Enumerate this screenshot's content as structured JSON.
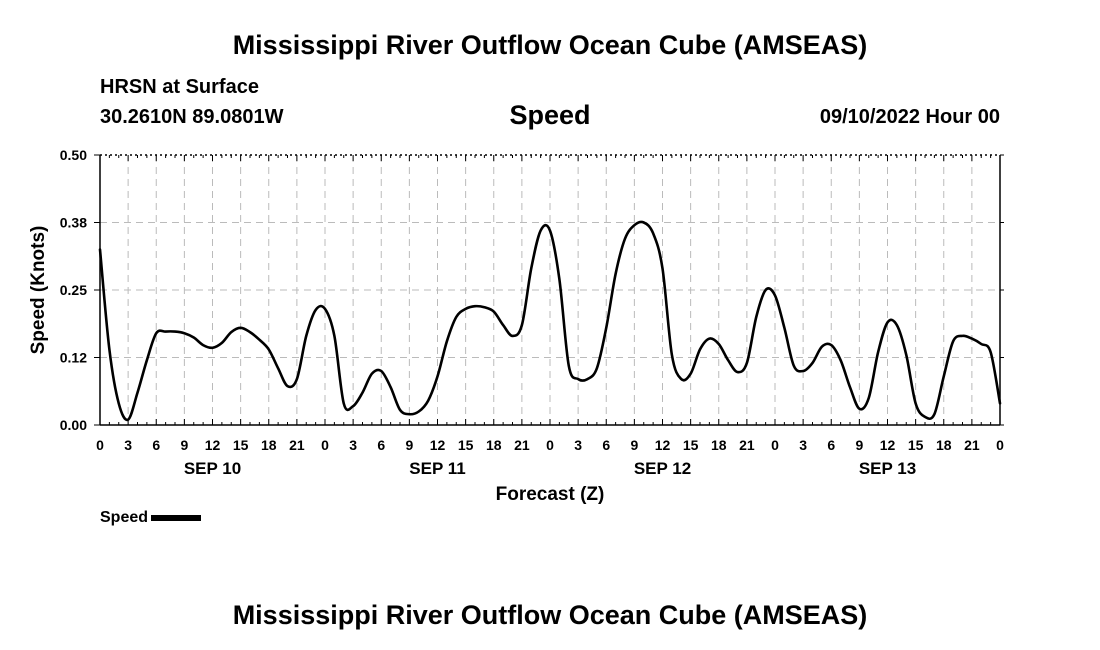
{
  "page_title": "Mississippi River Outflow Ocean Cube (AMSEAS)",
  "footer_title": "Mississippi River Outflow Ocean Cube (AMSEAS)",
  "location": {
    "station": "HRSN at Surface",
    "coords": "30.2610N  89.0801W"
  },
  "variable": "Speed",
  "issued": "09/10/2022 Hour 00",
  "legend": {
    "label": "Speed"
  },
  "chart_data": {
    "type": "line",
    "title": "Speed",
    "xlabel": "Forecast (Z)",
    "ylabel": "Speed (Knots)",
    "x_unit": "hours since 09/10/2022 00Z",
    "xlim": [
      0,
      96
    ],
    "ylim": [
      0,
      0.5
    ],
    "yticks": [
      0,
      0.125,
      0.25,
      0.375,
      0.5
    ],
    "ytick_labels": [
      "0.00",
      "0.12",
      "0.25",
      "0.38",
      "0.50"
    ],
    "xticks": [
      0,
      3,
      6,
      9,
      12,
      15,
      18,
      21,
      24,
      27,
      30,
      33,
      36,
      39,
      42,
      45,
      48,
      51,
      54,
      57,
      60,
      63,
      66,
      69,
      72,
      75,
      78,
      81,
      84,
      87,
      90,
      93,
      96
    ],
    "xtick_labels": [
      "0",
      "3",
      "6",
      "9",
      "12",
      "15",
      "18",
      "21",
      "0",
      "3",
      "6",
      "9",
      "12",
      "15",
      "18",
      "21",
      "0",
      "3",
      "6",
      "9",
      "12",
      "15",
      "18",
      "21",
      "0",
      "3",
      "6",
      "9",
      "12",
      "15",
      "18",
      "21",
      "0"
    ],
    "day_labels": [
      {
        "label": "SEP 10",
        "hour": 12
      },
      {
        "label": "SEP 11",
        "hour": 36
      },
      {
        "label": "SEP 12",
        "hour": 60
      },
      {
        "label": "SEP 13",
        "hour": 84
      }
    ],
    "grid": true,
    "legend_position": "bottom-left",
    "series": [
      {
        "name": "Speed",
        "x": [
          0,
          1,
          2,
          3,
          4,
          5,
          6,
          7,
          8,
          9,
          10,
          11,
          12,
          13,
          14,
          15,
          16,
          17,
          18,
          19,
          20,
          21,
          22,
          23,
          24,
          25,
          26,
          27,
          28,
          29,
          30,
          31,
          32,
          33,
          34,
          35,
          36,
          37,
          38,
          39,
          40,
          41,
          42,
          43,
          44,
          45,
          46,
          47,
          48,
          49,
          50,
          51,
          52,
          53,
          54,
          55,
          56,
          57,
          58,
          59,
          60,
          61,
          62,
          63,
          64,
          65,
          66,
          67,
          68,
          69,
          70,
          71,
          72,
          73,
          74,
          75,
          76,
          77,
          78,
          79,
          80,
          81,
          82,
          83,
          84,
          85,
          86,
          87,
          88,
          89,
          90,
          91,
          92,
          93,
          94,
          95,
          96
        ],
        "values": [
          0.325,
          0.14,
          0.04,
          0.01,
          0.06,
          0.12,
          0.17,
          0.173,
          0.173,
          0.17,
          0.162,
          0.148,
          0.143,
          0.152,
          0.172,
          0.18,
          0.172,
          0.158,
          0.14,
          0.105,
          0.072,
          0.085,
          0.165,
          0.213,
          0.215,
          0.165,
          0.04,
          0.035,
          0.06,
          0.095,
          0.1,
          0.07,
          0.028,
          0.02,
          0.025,
          0.045,
          0.09,
          0.155,
          0.2,
          0.215,
          0.22,
          0.218,
          0.21,
          0.185,
          0.165,
          0.185,
          0.29,
          0.36,
          0.36,
          0.27,
          0.11,
          0.085,
          0.085,
          0.105,
          0.18,
          0.28,
          0.345,
          0.37,
          0.375,
          0.355,
          0.29,
          0.13,
          0.085,
          0.095,
          0.14,
          0.16,
          0.15,
          0.12,
          0.098,
          0.115,
          0.2,
          0.25,
          0.24,
          0.18,
          0.11,
          0.1,
          0.115,
          0.145,
          0.148,
          0.12,
          0.07,
          0.03,
          0.05,
          0.135,
          0.19,
          0.185,
          0.13,
          0.04,
          0.015,
          0.02,
          0.09,
          0.155,
          0.165,
          0.16,
          0.15,
          0.135,
          0.04
        ]
      }
    ]
  }
}
